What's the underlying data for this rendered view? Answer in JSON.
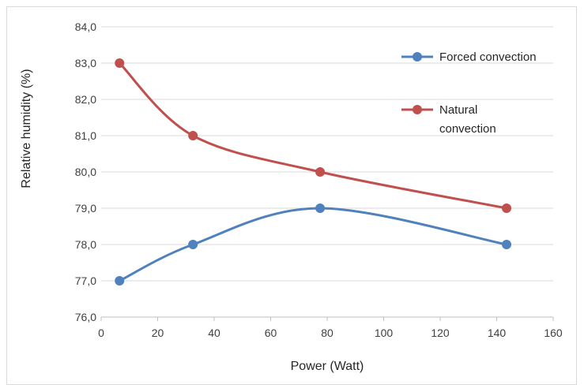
{
  "chart_data": {
    "type": "line",
    "title": "",
    "xlabel": "Power (Watt)",
    "ylabel": "Relative humidity (%)",
    "xlim": [
      0,
      160
    ],
    "ylim": [
      76,
      84
    ],
    "x_ticks": [
      "0",
      "20",
      "40",
      "60",
      "80",
      "100",
      "120",
      "140",
      "160"
    ],
    "y_ticks": [
      "76,0",
      "77,0",
      "78,0",
      "79,0",
      "80,0",
      "81,0",
      "82,0",
      "83,0",
      "84,0"
    ],
    "grid": "horizontal",
    "legend_position": "right",
    "series": [
      {
        "name": "Forced convection",
        "color": "#4f81bd",
        "x": [
          6.5,
          32.5,
          77.5,
          143.5
        ],
        "y": [
          77,
          78,
          79,
          78
        ]
      },
      {
        "name": "Natural convection",
        "name_lines": [
          "Natural",
          "convection"
        ],
        "color": "#c0504d",
        "x": [
          6.5,
          32.5,
          77.5,
          143.5
        ],
        "y": [
          83,
          81,
          80,
          79
        ]
      }
    ]
  }
}
